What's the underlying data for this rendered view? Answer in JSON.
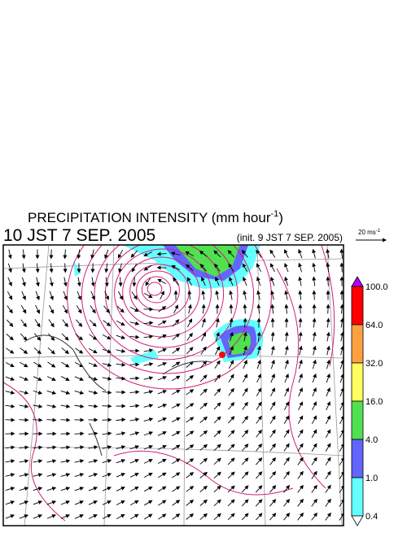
{
  "header": {
    "title": "PRECIPITATION INTENSITY (mm hour",
    "title_exponent": "-1",
    "title_close": ")",
    "valid_time": "10 JST 7 SEP. 2005",
    "init_time": "(init. 9 JST 7 SEP. 2005)"
  },
  "wind_scale": {
    "label": "20 ms",
    "exponent": "-1"
  },
  "colorbar": {
    "labels": [
      "100.0",
      "64.0",
      "32.0",
      "16.0",
      "4.0",
      "1.0",
      "0.4"
    ],
    "colors": [
      "#b000ff",
      "#ff0000",
      "#ffa040",
      "#ffff60",
      "#50e050",
      "#6464ff",
      "#64ffff",
      "#ffffff"
    ]
  }
}
